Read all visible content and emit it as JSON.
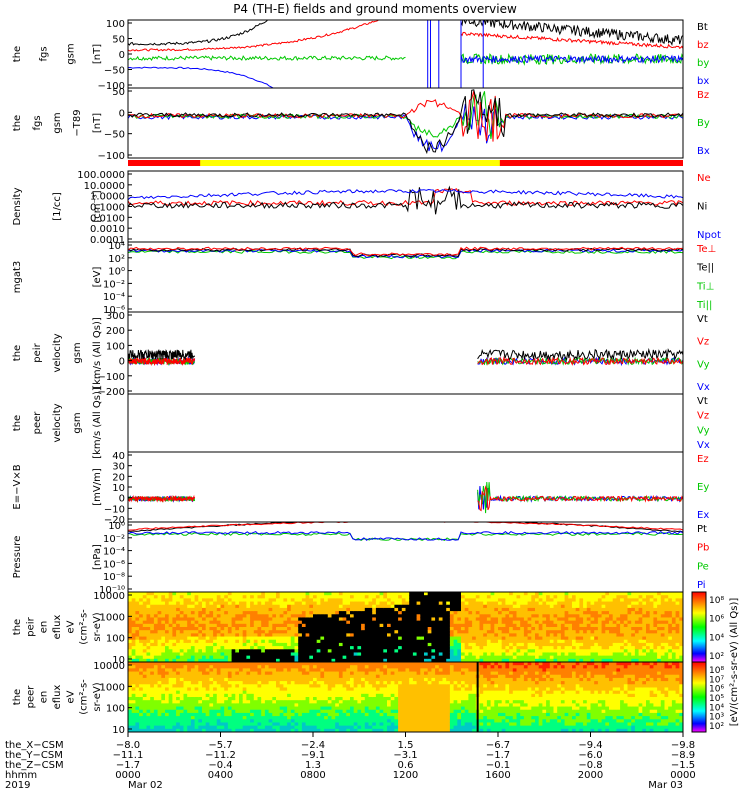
{
  "title": "P4 (TH-E) fields and ground moments overview",
  "colors": {
    "black": "#000000",
    "red": "#ff0000",
    "green": "#00c800",
    "blue": "#0000ff",
    "yellow": "#ffff00"
  },
  "chart_data": [
    {
      "id": "fgs",
      "type": "line",
      "ylabel": [
        "the",
        "fgs",
        "gsm",
        "[nT]"
      ],
      "ylim": [
        -100,
        100
      ],
      "yticks": [
        "100",
        "50",
        "0",
        "−50",
        "−100"
      ],
      "series": [
        {
          "name": "Bt",
          "color": "black"
        },
        {
          "name": "bz",
          "color": "red"
        },
        {
          "name": "by",
          "color": "green"
        },
        {
          "name": "bx",
          "color": "blue"
        }
      ]
    },
    {
      "id": "fgs-dip",
      "type": "line",
      "ylabel": [
        "the",
        "fgs",
        "gsm",
        "−T89",
        "[nT]"
      ],
      "ylim": [
        -120,
        80
      ],
      "yticks": [
        "50",
        "0",
        "−50",
        "−100"
      ],
      "series": [
        {
          "name": "Bz",
          "color": "red"
        },
        {
          "name": "By",
          "color": "green"
        },
        {
          "name": "Bx",
          "color": "blue"
        }
      ]
    },
    {
      "id": "density",
      "type": "line",
      "scale": "log",
      "ylabel": [
        "Density",
        "[1/cc]",
        "[cm⁻³]"
      ],
      "yticks": [
        "100.0000",
        "10.0000",
        "1.0000",
        "0.1000",
        "0.0100",
        "0.0010",
        "0.0001"
      ],
      "series": [
        {
          "name": "Ne",
          "color": "red"
        },
        {
          "name": "Ni",
          "color": "black"
        },
        {
          "name": "Npot",
          "color": "blue"
        }
      ]
    },
    {
      "id": "temperature",
      "type": "line",
      "scale": "log",
      "ylabel": [
        "mgat3",
        "[eV]"
      ],
      "yticks": [
        "10⁴",
        "10²",
        "10⁰",
        "10⁻²",
        "10⁻⁴",
        "10⁻⁶"
      ],
      "series": [
        {
          "name": "Te⊥",
          "color": "red"
        },
        {
          "name": "Te||",
          "color": "black"
        },
        {
          "name": "Ti⊥",
          "color": "green"
        },
        {
          "name": "Ti||",
          "color": "green"
        }
      ]
    },
    {
      "id": "peir-velocity",
      "type": "line",
      "ylabel": [
        "the",
        "peir",
        "velocity",
        "gsm",
        "[km/s (All Qs)]"
      ],
      "ylim": [
        -200,
        300
      ],
      "yticks": [
        "300",
        "200",
        "100",
        "0",
        "−100",
        "−200"
      ],
      "series": [
        {
          "name": "Vt",
          "color": "black"
        },
        {
          "name": "Vz",
          "color": "red"
        },
        {
          "name": "Vy",
          "color": "green"
        },
        {
          "name": "Vx",
          "color": "blue"
        }
      ]
    },
    {
      "id": "peer-velocity",
      "type": "line",
      "ylabel": [
        "the",
        "peer",
        "velocity",
        "gsm",
        "[km/s (All Qs)]"
      ],
      "series": [
        {
          "name": "Vt",
          "color": "black"
        },
        {
          "name": "Vz",
          "color": "red"
        },
        {
          "name": "Vy",
          "color": "green"
        },
        {
          "name": "Vx",
          "color": "blue"
        }
      ]
    },
    {
      "id": "efield",
      "type": "line",
      "ylabel": [
        "E=−V×B",
        "[mV/m]"
      ],
      "ylim": [
        -20,
        40
      ],
      "yticks": [
        "40",
        "30",
        "20",
        "10",
        "0",
        "−10",
        "−20"
      ],
      "series": [
        {
          "name": "Ez",
          "color": "red"
        },
        {
          "name": "Ey",
          "color": "green"
        },
        {
          "name": "Ex",
          "color": "blue"
        }
      ]
    },
    {
      "id": "pressure",
      "type": "line",
      "scale": "log",
      "ylabel": [
        "Pressure",
        "[nPa]"
      ],
      "yticks": [
        "10⁰",
        "10⁻²",
        "10⁻⁴",
        "10⁻⁶",
        "10⁻⁸",
        "10⁻¹⁰"
      ],
      "series": [
        {
          "name": "Pt",
          "color": "black"
        },
        {
          "name": "Pb",
          "color": "red"
        },
        {
          "name": "Pe",
          "color": "green"
        },
        {
          "name": "Pi",
          "color": "blue"
        }
      ]
    },
    {
      "id": "peir-spectrogram",
      "type": "heatmap",
      "ylabel": [
        "the",
        "peir",
        "en",
        "eflux",
        "eV",
        "(cm²-s-",
        "sr-eV)"
      ],
      "yticks": [
        "10000",
        "1000",
        "100",
        "10"
      ],
      "colorbar_ticks": [
        "10⁸",
        "10⁶",
        "10⁴",
        "10²"
      ]
    },
    {
      "id": "peer-spectrogram",
      "type": "heatmap",
      "ylabel": [
        "the",
        "peer",
        "en",
        "eflux",
        "eV",
        "(cm²-s-",
        "sr-eV)"
      ],
      "yticks": [
        "10000",
        "1000",
        "100",
        "10"
      ],
      "colorbar_ticks": [
        "10⁸",
        "10⁷",
        "10⁶",
        "10⁵",
        "10⁴",
        "10³",
        "10²"
      ]
    }
  ],
  "colorbar_label": "[eV/(cm²-s-sr-eV) (All Qs)]",
  "xaxis": {
    "rows": [
      {
        "label": "the_X−CSM",
        "values": [
          "−8.0",
          "−5.7",
          "−2.4",
          "1.5",
          "−6.7",
          "−9.4",
          "−9.8"
        ]
      },
      {
        "label": "the_Y−CSM",
        "values": [
          "−11.1",
          "−11.2",
          "−9.1",
          "−3.1",
          "−1.7",
          "−6.0",
          "−8.9"
        ]
      },
      {
        "label": "the_Z−CSM",
        "values": [
          "−1.7",
          "−0.4",
          "1.3",
          "0.6",
          "−0.1",
          "−0.8",
          "−1.5"
        ]
      },
      {
        "label": "hhmm",
        "values": [
          "0000",
          "0400",
          "0800",
          "1200",
          "1600",
          "2000",
          "0000"
        ]
      },
      {
        "label": "2019",
        "values": [
          "Mar 02",
          "",
          "",
          "",
          "",
          "",
          "Mar 03"
        ]
      }
    ]
  }
}
